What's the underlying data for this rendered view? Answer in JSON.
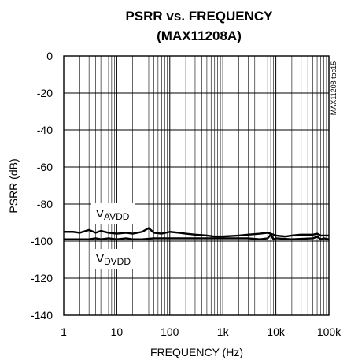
{
  "chart_data": {
    "type": "line",
    "title": "PSRR vs. FREQUENCY",
    "subtitle": "(MAX11208A)",
    "xlabel": "FREQUENCY (Hz)",
    "ylabel": "PSRR (dB)",
    "x_scale": "log",
    "xlim": [
      1,
      100000
    ],
    "ylim": [
      -140,
      0
    ],
    "x_ticks": [
      "1",
      "10",
      "100",
      "1k",
      "10k",
      "100k"
    ],
    "y_ticks": [
      "0",
      "-20",
      "-40",
      "-60",
      "-80",
      "-100",
      "-120",
      "-140"
    ],
    "grid": true,
    "figure_code": "MAX11208 toc15",
    "series": [
      {
        "label_main": "V",
        "label_sub": "AVDD",
        "x": [
          1,
          1.5,
          2,
          3,
          4,
          5,
          7,
          10,
          15,
          20,
          30,
          40,
          50,
          70,
          100,
          150,
          200,
          300,
          500,
          700,
          1000,
          1500,
          2000,
          3000,
          5000,
          7000,
          8000,
          10000,
          15000,
          20000,
          30000,
          50000,
          60000,
          70000,
          100000
        ],
        "y": [
          -95,
          -95,
          -95.5,
          -94,
          -95.5,
          -94.5,
          -95.5,
          -96,
          -95.5,
          -96,
          -95,
          -93,
          -95.5,
          -96,
          -95,
          -95.5,
          -96,
          -96.5,
          -97,
          -97.5,
          -97.5,
          -97.2,
          -97,
          -96.5,
          -96,
          -95.5,
          -96,
          -97,
          -97.5,
          -97,
          -96.5,
          -96.5,
          -96,
          -97,
          -97
        ]
      },
      {
        "label_main": "V",
        "label_sub": "DVDD",
        "x": [
          1,
          2,
          3,
          4,
          5,
          7,
          10,
          15,
          20,
          30,
          50,
          100,
          200,
          500,
          1000,
          2000,
          3000,
          5000,
          7000,
          8000,
          9000,
          10000,
          20000,
          50000,
          60000,
          70000,
          80000,
          100000
        ],
        "y": [
          -99,
          -99,
          -99,
          -98.5,
          -99,
          -98.5,
          -99,
          -98.5,
          -99,
          -99,
          -98.5,
          -98.5,
          -98.5,
          -98.5,
          -98.5,
          -98.5,
          -98.5,
          -99,
          -98.5,
          -96.5,
          -99,
          -98.5,
          -99,
          -98.5,
          -97.5,
          -99,
          -98.5,
          -99
        ]
      }
    ]
  }
}
